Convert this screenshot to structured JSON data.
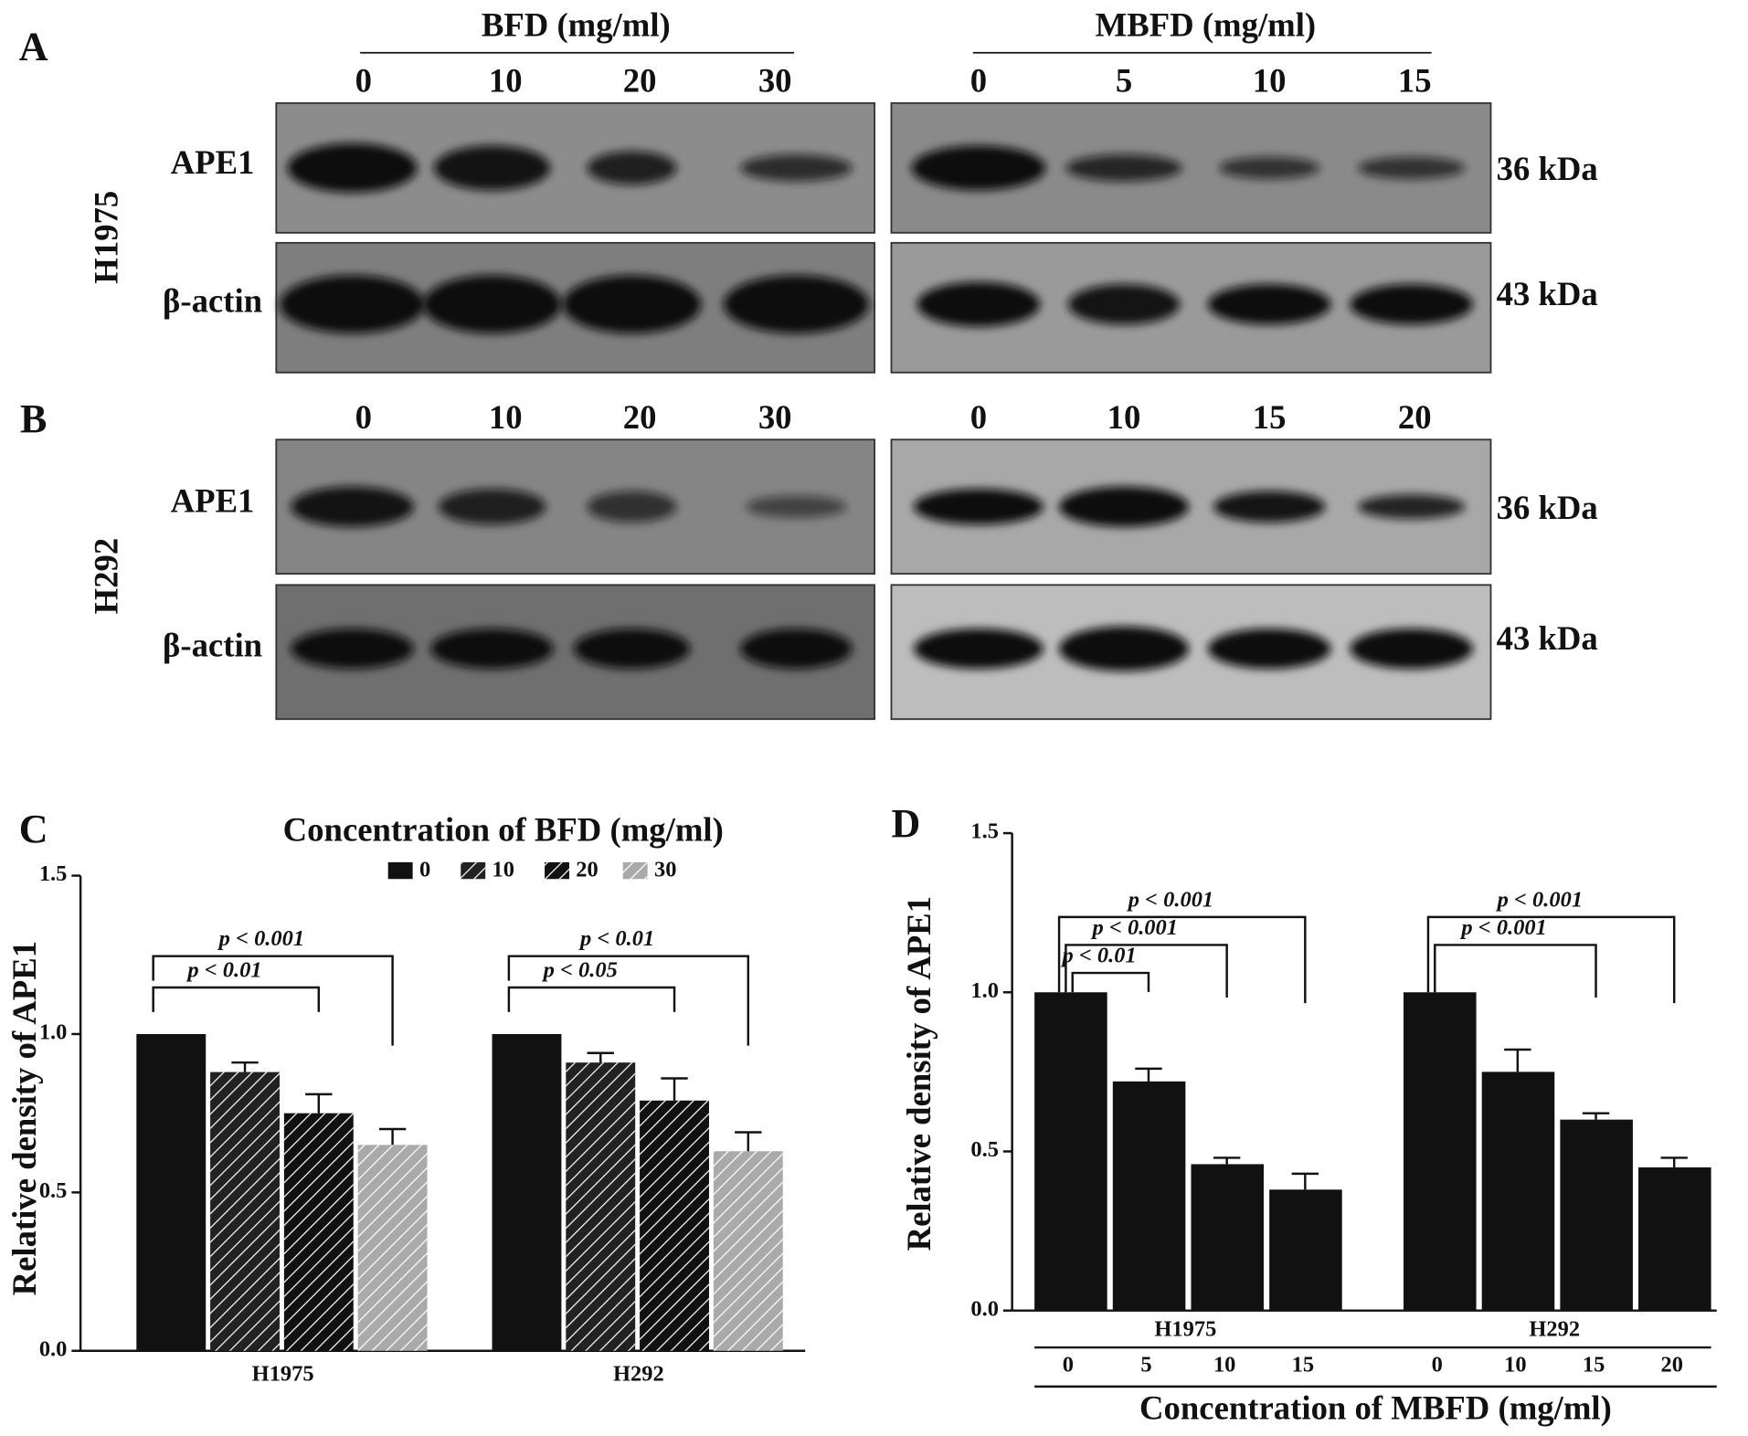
{
  "figure": {
    "panel_a": {
      "label": "A",
      "cell_line": "H1975",
      "left_title": "BFD (mg/ml)",
      "right_title": "MBFD (mg/ml)",
      "left_lanes": [
        "0",
        "10",
        "20",
        "30"
      ],
      "right_lanes": [
        "0",
        "5",
        "10",
        "15"
      ],
      "rows": [
        {
          "protein": "APE1",
          "size": "36 kDa"
        },
        {
          "protein": "β-actin",
          "size": "43 kDa"
        }
      ]
    },
    "panel_b": {
      "label": "B",
      "cell_line": "H292",
      "left_lanes": [
        "0",
        "10",
        "20",
        "30"
      ],
      "right_lanes": [
        "0",
        "10",
        "15",
        "20"
      ],
      "rows": [
        {
          "protein": "APE1",
          "size": "36 kDa"
        },
        {
          "protein": "β-actin",
          "size": "43 kDa"
        }
      ]
    }
  },
  "chart_data": [
    {
      "type": "grouped_bar",
      "panel": "C",
      "title": "Concentration of BFD (mg/ml)",
      "ylabel": "Relative density of APE1",
      "categories": [
        "H1975",
        "H292"
      ],
      "series": [
        {
          "name": "0",
          "color": "#111111",
          "hatch": false,
          "values": [
            1.0,
            1.0
          ],
          "errors": [
            null,
            null
          ]
        },
        {
          "name": "10",
          "color": "#222222",
          "hatch": true,
          "values": [
            0.88,
            0.91
          ],
          "errors": [
            0.03,
            0.03
          ]
        },
        {
          "name": "20",
          "color": "#111111",
          "hatch": true,
          "values": [
            0.75,
            0.79
          ],
          "errors": [
            0.06,
            0.07
          ]
        },
        {
          "name": "30",
          "color": "#aaaaaa",
          "hatch": true,
          "values": [
            0.65,
            0.63
          ],
          "errors": [
            0.05,
            0.06
          ]
        }
      ],
      "ylim": [
        0,
        1.5
      ],
      "yticks": [
        {
          "value": 0,
          "label": "0.0"
        },
        {
          "value": 0.5,
          "label": "0.5"
        },
        {
          "value": 1,
          "label": "1.0"
        },
        {
          "value": 1.5,
          "label": "1.5"
        }
      ],
      "annotations": [
        {
          "text": "p < 0.01"
        },
        {
          "text": "p < 0.001"
        },
        {
          "text": "p < 0.05"
        },
        {
          "text": "p < 0.01"
        }
      ]
    },
    {
      "type": "bar_groups",
      "panel": "D",
      "ylabel": "Relative density of APE1",
      "xlabel": "Concentration of MBFD (mg/ml)",
      "color": "#111111",
      "groups": [
        {
          "name": "H1975",
          "categories": [
            "0",
            "5",
            "10",
            "15"
          ],
          "values": [
            1.0,
            0.72,
            0.46,
            0.38
          ],
          "errors": [
            null,
            0.04,
            0.02,
            0.05
          ]
        },
        {
          "name": "H292",
          "categories": [
            "0",
            "10",
            "15",
            "20"
          ],
          "values": [
            1.0,
            0.75,
            0.6,
            0.45
          ],
          "errors": [
            null,
            0.07,
            0.02,
            0.03
          ]
        }
      ],
      "ylim": [
        0,
        1.5
      ],
      "yticks": [
        {
          "value": 0,
          "label": "0.0"
        },
        {
          "value": 0.5,
          "label": "0.5"
        },
        {
          "value": 1,
          "label": "1.0"
        },
        {
          "value": 1.5,
          "label": "1.5"
        }
      ],
      "annotations": [
        {
          "text": "p < 0.01"
        },
        {
          "text": "p < 0.001"
        },
        {
          "text": "p < 0.001"
        },
        {
          "text": "p < 0.001"
        },
        {
          "text": "p < 0.001"
        }
      ]
    }
  ]
}
